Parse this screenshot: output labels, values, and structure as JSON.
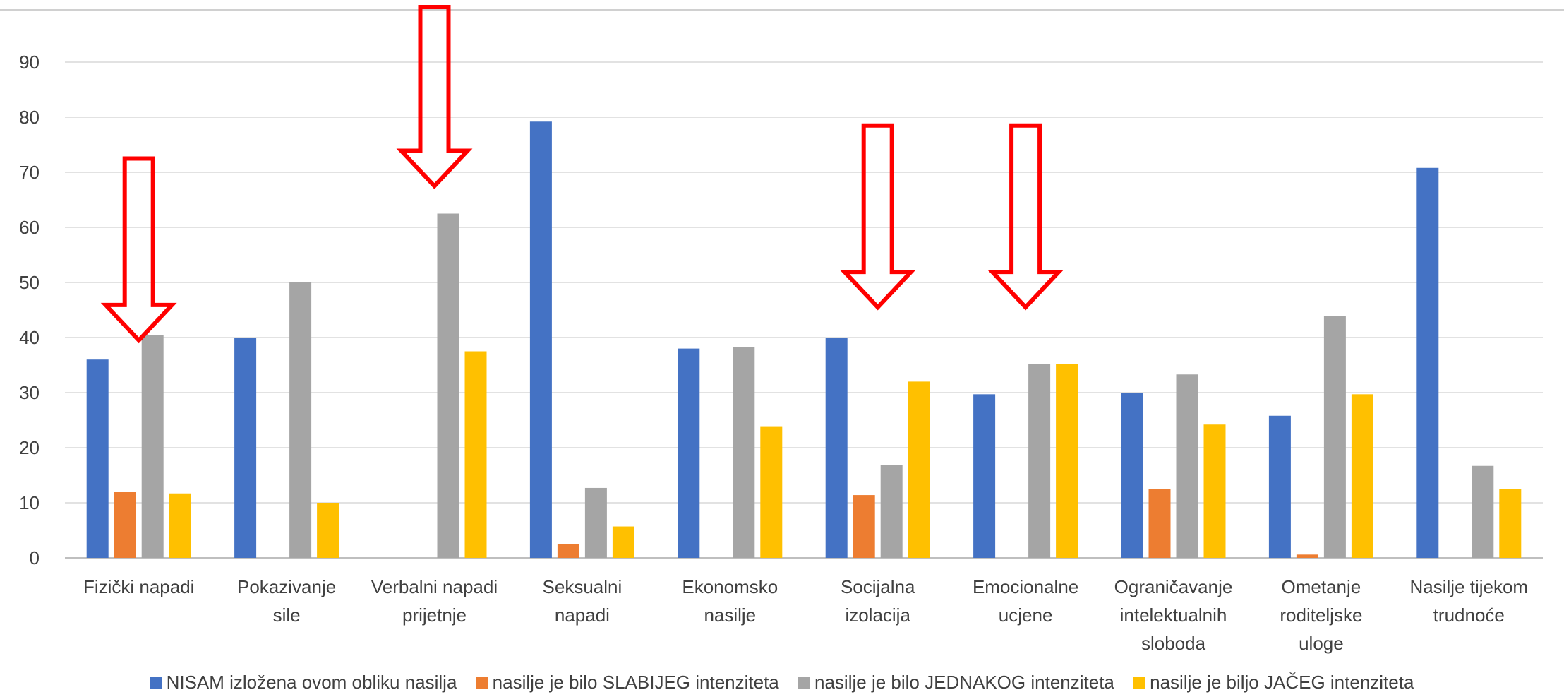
{
  "chart_data": {
    "type": "bar",
    "categories": [
      [
        "Fizički napadi"
      ],
      [
        "Pokazivanje",
        "sile"
      ],
      [
        "Verbalni napadi",
        "prijetnje"
      ],
      [
        "Seksualni",
        "napadi"
      ],
      [
        "Ekonomsko",
        "nasilje"
      ],
      [
        "Socijalna",
        "izolacija"
      ],
      [
        "Emocionalne",
        "ucjene"
      ],
      [
        "Ograničavanje",
        "intelektualnih",
        "sloboda"
      ],
      [
        "Ometanje",
        "roditeljske",
        "uloge"
      ],
      [
        "Nasilje tijekom",
        "trudnoće"
      ]
    ],
    "series": [
      {
        "name": "NISAM izložena ovom obliku nasilja",
        "color": "#4472C4",
        "values": [
          36,
          40,
          0,
          79.2,
          38,
          40,
          29.7,
          30,
          25.8,
          70.8
        ]
      },
      {
        "name": "nasilje je bilo SLABIJEG intenziteta",
        "color": "#ED7D31",
        "values": [
          12,
          0,
          0,
          2.5,
          0,
          11.4,
          0,
          12.5,
          0.6,
          0
        ]
      },
      {
        "name": "nasilje je bilo JEDNAKOG intenziteta",
        "color": "#A5A5A5",
        "values": [
          40.5,
          50,
          62.5,
          12.7,
          38.3,
          16.8,
          35.2,
          33.3,
          43.9,
          16.7
        ]
      },
      {
        "name": "nasilje je biljo JAČEG intenziteta",
        "color": "#FFC000",
        "values": [
          11.7,
          10,
          37.5,
          5.7,
          23.9,
          32,
          35.2,
          24.2,
          29.7,
          12.5
        ]
      }
    ],
    "yticks": [
      "0",
      "10",
      "20",
      "30",
      "40",
      "50",
      "60",
      "70",
      "80",
      "90"
    ],
    "ylim": [
      0,
      100
    ],
    "grid": true,
    "legend": "bottom",
    "annotations": [
      {
        "type": "down-arrow",
        "category_index": 0,
        "tip_value": 39.5,
        "top_value": 72.5
      },
      {
        "type": "down-arrow",
        "category_index": 2,
        "tip_value": 67.5,
        "top_value": 100
      },
      {
        "type": "down-arrow",
        "category_index": 5,
        "tip_value": 45.5,
        "top_value": 78.5
      },
      {
        "type": "down-arrow",
        "category_index": 6,
        "tip_value": 45.5,
        "top_value": 78.5
      }
    ]
  }
}
